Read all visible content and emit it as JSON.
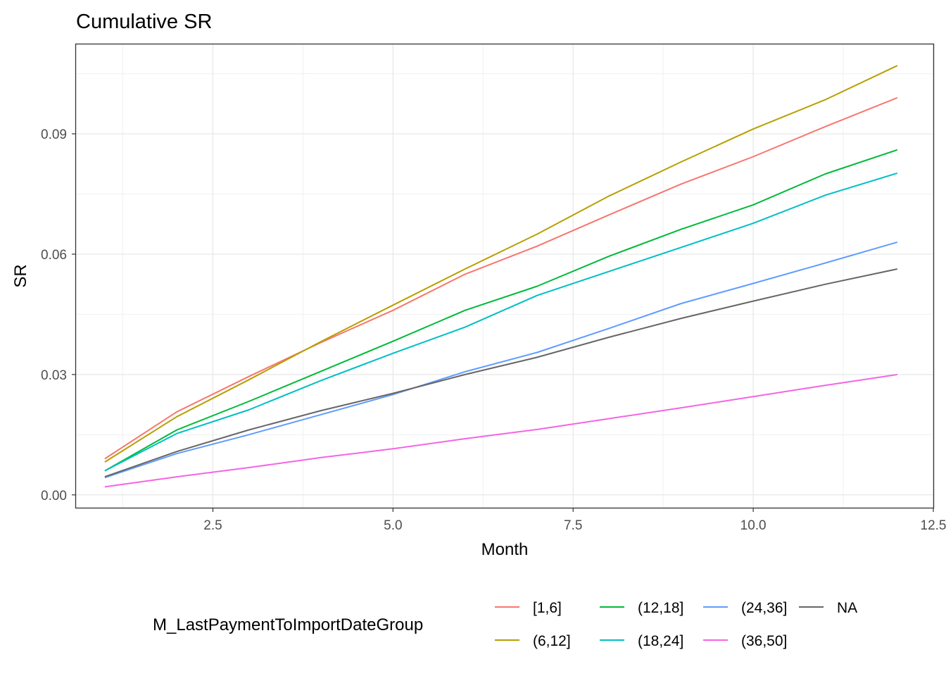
{
  "chart_data": {
    "type": "line",
    "title": "Cumulative SR",
    "xlabel": "Month",
    "ylabel": "SR",
    "xlim": [
      0.6,
      12.5
    ],
    "ylim": [
      -0.0032,
      0.1123
    ],
    "x_ticks": [
      2.5,
      5.0,
      7.5,
      10.0,
      12.5
    ],
    "x_tick_labels": [
      "2.5",
      "5.0",
      "7.5",
      "10.0",
      "12.5"
    ],
    "y_ticks": [
      0.0,
      0.03,
      0.06,
      0.09
    ],
    "y_tick_labels": [
      "0.00",
      "0.03",
      "0.06",
      "0.09"
    ],
    "grid": true,
    "legend_position": "bottom",
    "legend_title": "M_LastPaymentToImportDateGroup",
    "x": [
      1,
      2,
      3,
      4,
      5,
      6,
      7,
      8,
      9,
      10,
      11,
      12
    ],
    "series": [
      {
        "name": "[1,6]",
        "color": "#F8766D",
        "values": [
          0.009,
          0.0207,
          0.0295,
          0.038,
          0.046,
          0.055,
          0.062,
          0.0698,
          0.0775,
          0.0843,
          0.0918,
          0.099
        ]
      },
      {
        "name": "(6,12]",
        "color": "#B79F00",
        "values": [
          0.0082,
          0.0195,
          0.0287,
          0.0382,
          0.0473,
          0.0563,
          0.065,
          0.0745,
          0.083,
          0.0912,
          0.0985,
          0.107
        ]
      },
      {
        "name": "(12,18]",
        "color": "#00BA38",
        "values": [
          0.006,
          0.0162,
          0.0233,
          0.0308,
          0.0383,
          0.046,
          0.052,
          0.0595,
          0.0662,
          0.0723,
          0.08,
          0.086
        ]
      },
      {
        "name": "(18,24]",
        "color": "#00BFC4",
        "values": [
          0.006,
          0.0153,
          0.0212,
          0.0285,
          0.0353,
          0.0418,
          0.0497,
          0.0557,
          0.0617,
          0.0677,
          0.0747,
          0.0802
        ]
      },
      {
        "name": "(24,36]",
        "color": "#619CFF",
        "values": [
          0.0043,
          0.0103,
          0.015,
          0.02,
          0.025,
          0.0307,
          0.0355,
          0.0415,
          0.0477,
          0.0527,
          0.0578,
          0.063
        ]
      },
      {
        "name": "(36,50]",
        "color": "#F564E3",
        "values": [
          0.002,
          0.0045,
          0.0068,
          0.0093,
          0.0115,
          0.014,
          0.0163,
          0.019,
          0.0217,
          0.0245,
          0.0273,
          0.03
        ]
      },
      {
        "name": "NA",
        "color": "#666666",
        "values": [
          0.0045,
          0.0108,
          0.0162,
          0.021,
          0.0253,
          0.03,
          0.0343,
          0.0393,
          0.044,
          0.0483,
          0.0525,
          0.0563
        ]
      }
    ]
  }
}
